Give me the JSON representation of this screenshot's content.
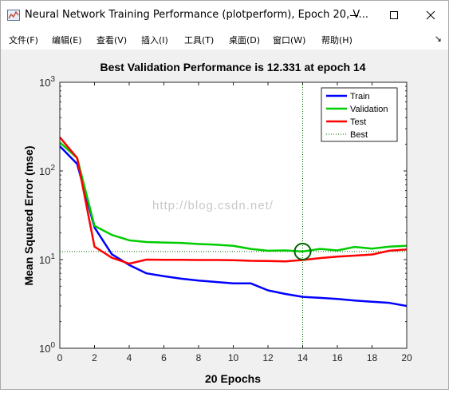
{
  "window": {
    "title": "Neural Network Training Performance (plotperform), Epoch 20, V...",
    "minimize_icon": "minimize-icon",
    "maximize_icon": "maximize-icon",
    "close_icon": "close-icon"
  },
  "menu": {
    "items": [
      "文件(F)",
      "编辑(E)",
      "查看(V)",
      "插入(I)",
      "工具(T)",
      "桌面(D)",
      "窗口(W)",
      "帮助(H)"
    ],
    "dock_arrow": "↘"
  },
  "watermark": "http://blog.csdn.net/",
  "chart_data": {
    "type": "line",
    "title": "Best Validation Performance is 12.331 at epoch 14",
    "xlabel": "20 Epochs",
    "ylabel": "Mean Squared Error  (mse)",
    "xlim": [
      0,
      20
    ],
    "ylim": [
      1,
      1000
    ],
    "yscale": "log",
    "xticks": [
      "0",
      "2",
      "4",
      "6",
      "8",
      "10",
      "12",
      "14",
      "16",
      "18",
      "20"
    ],
    "yticks": [
      {
        "base": "10",
        "exp": "0"
      },
      {
        "base": "10",
        "exp": "1"
      },
      {
        "base": "10",
        "exp": "2"
      },
      {
        "base": "10",
        "exp": "3"
      }
    ],
    "x": [
      0,
      1,
      2,
      3,
      4,
      5,
      6,
      7,
      8,
      9,
      10,
      11,
      12,
      13,
      14,
      15,
      16,
      17,
      18,
      19,
      20
    ],
    "series": [
      {
        "name": "Train",
        "color": "#0000ff",
        "values": [
          190,
          120,
          23,
          11.5,
          8.7,
          7.0,
          6.5,
          6.1,
          5.8,
          5.6,
          5.4,
          5.4,
          4.5,
          4.1,
          3.8,
          3.7,
          3.6,
          3.45,
          3.35,
          3.25,
          3.0
        ]
      },
      {
        "name": "Validation",
        "color": "#00cc00",
        "values": [
          210,
          140,
          24,
          19,
          16.5,
          15.8,
          15.6,
          15.4,
          15.0,
          14.7,
          14.3,
          13.2,
          12.6,
          12.7,
          12.331,
          13.2,
          12.7,
          13.9,
          13.3,
          14.0,
          14.3
        ]
      },
      {
        "name": "Test",
        "color": "#ff0000",
        "values": [
          240,
          140,
          14,
          10.5,
          9.0,
          10.0,
          9.95,
          9.95,
          9.9,
          9.9,
          9.85,
          9.7,
          9.65,
          9.55,
          9.9,
          10.4,
          10.8,
          11.1,
          11.4,
          12.6,
          13.0
        ]
      }
    ],
    "best": {
      "label": "Best",
      "epoch": 14,
      "value": 12.331,
      "color": "#006400"
    },
    "legend": "top-right",
    "grid": false
  }
}
